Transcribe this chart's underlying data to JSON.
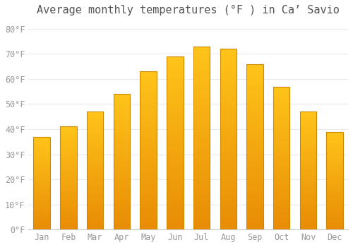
{
  "title": "Average monthly temperatures (°F ) in Ca’ Savio",
  "months": [
    "Jan",
    "Feb",
    "Mar",
    "Apr",
    "May",
    "Jun",
    "Jul",
    "Aug",
    "Sep",
    "Oct",
    "Nov",
    "Dec"
  ],
  "values": [
    37,
    41,
    47,
    54,
    63,
    69,
    73,
    72,
    66,
    57,
    47,
    39
  ],
  "bar_color_main": "#FFB020",
  "bar_color_light": "#FFD060",
  "bar_color_dark": "#E89010",
  "bar_edge_color": "#CC8800",
  "background_color": "#ffffff",
  "grid_color": "#e8e8ee",
  "yticks": [
    0,
    10,
    20,
    30,
    40,
    50,
    60,
    70,
    80
  ],
  "ylim": [
    0,
    83
  ],
  "title_fontsize": 11,
  "tick_fontsize": 8.5,
  "font_family": "monospace",
  "tick_color": "#999999",
  "spine_color": "#cccccc"
}
